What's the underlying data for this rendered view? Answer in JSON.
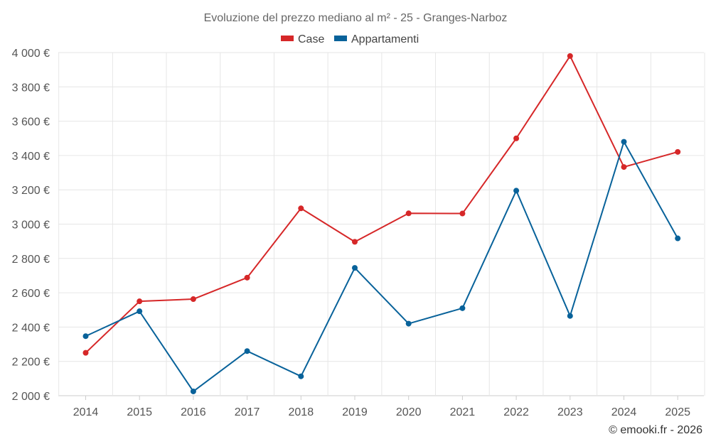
{
  "chart_data": {
    "type": "line",
    "title": "Evoluzione del prezzo mediano al m² - 25 - Granges-Narboz",
    "categories": [
      "2014",
      "2015",
      "2016",
      "2017",
      "2018",
      "2019",
      "2020",
      "2021",
      "2022",
      "2023",
      "2024",
      "2025"
    ],
    "series": [
      {
        "name": "Case",
        "color": "#d62728",
        "values": [
          2250,
          2550,
          2563,
          2688,
          3092,
          2897,
          3063,
          3062,
          3500,
          3980,
          3333,
          3421
        ]
      },
      {
        "name": "Appartamenti",
        "color": "#08629a",
        "values": [
          2347,
          2492,
          2025,
          2260,
          2113,
          2745,
          2420,
          2510,
          3195,
          2465,
          3480,
          2917
        ]
      }
    ],
    "y_ticks": [
      2000,
      2200,
      2400,
      2600,
      2800,
      3000,
      3200,
      3400,
      3600,
      3800,
      4000
    ],
    "y_tick_labels": [
      "2 000 €",
      "2 200 €",
      "2 400 €",
      "2 600 €",
      "2 800 €",
      "3 000 €",
      "3 200 €",
      "3 400 €",
      "3 600 €",
      "3 800 €",
      "4 000 €"
    ],
    "ylim": [
      2000,
      4000
    ],
    "xlabel": "",
    "ylabel": "",
    "grid": true,
    "legend_position": "top-center"
  },
  "credit": "© emooki.fr - 2026"
}
